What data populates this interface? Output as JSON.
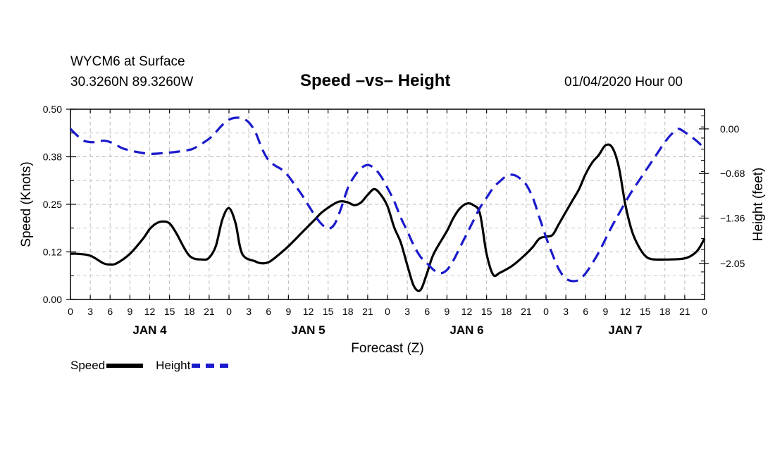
{
  "header": {
    "station": "WYCM6 at Surface",
    "coords": "30.3260N 89.3260W",
    "title": "Speed –vs– Height",
    "datetime": "01/04/2020 Hour 00"
  },
  "chart_data": {
    "type": "line",
    "title": "Speed –vs– Height",
    "xlabel": "Forecast (Z)",
    "ylabel_left": "Speed (Knots)",
    "ylabel_right": "Height (feet)",
    "x_range_hours": [
      0,
      96
    ],
    "y_left_range": [
      0.0,
      0.5
    ],
    "y_right_range": [
      -2.6,
      0.3
    ],
    "grid": true,
    "left_ticks": [
      "0.00",
      "0.12",
      "0.25",
      "0.38",
      "0.50"
    ],
    "left_tick_values": [
      0.0,
      0.125,
      0.25,
      0.375,
      0.5
    ],
    "right_ticks": [
      "0.00",
      "−0.68",
      "−1.36",
      "−2.05"
    ],
    "right_tick_values": [
      0.0,
      -0.68,
      -1.36,
      -2.05
    ],
    "x_tick_labels": [
      "0",
      "3",
      "6",
      "9",
      "12",
      "15",
      "18",
      "21",
      "0",
      "3",
      "6",
      "9",
      "12",
      "15",
      "18",
      "21",
      "0",
      "3",
      "6",
      "9",
      "12",
      "15",
      "18",
      "21",
      "0",
      "3",
      "6",
      "9",
      "12",
      "15",
      "18",
      "21",
      "0"
    ],
    "day_labels": [
      {
        "label": "JAN 4",
        "hour": 12
      },
      {
        "label": "JAN 5",
        "hour": 36
      },
      {
        "label": "JAN 6",
        "hour": 60
      },
      {
        "label": "JAN 7",
        "hour": 84
      }
    ],
    "series": [
      {
        "name": "Speed",
        "axis": "left",
        "color": "#000000",
        "style": "solid",
        "points": [
          [
            0,
            0.12
          ],
          [
            1,
            0.12
          ],
          [
            3,
            0.115
          ],
          [
            5,
            0.095
          ],
          [
            6,
            0.092
          ],
          [
            7,
            0.095
          ],
          [
            9,
            0.12
          ],
          [
            11,
            0.16
          ],
          [
            12,
            0.185
          ],
          [
            13,
            0.2
          ],
          [
            14,
            0.205
          ],
          [
            15,
            0.2
          ],
          [
            16,
            0.175
          ],
          [
            18,
            0.115
          ],
          [
            20,
            0.105
          ],
          [
            21,
            0.11
          ],
          [
            22,
            0.14
          ],
          [
            23,
            0.21
          ],
          [
            24,
            0.24
          ],
          [
            25,
            0.2
          ],
          [
            26,
            0.12
          ],
          [
            28,
            0.1
          ],
          [
            29,
            0.095
          ],
          [
            30,
            0.098
          ],
          [
            31,
            0.11
          ],
          [
            33,
            0.14
          ],
          [
            35,
            0.175
          ],
          [
            37,
            0.21
          ],
          [
            38,
            0.228
          ],
          [
            40,
            0.252
          ],
          [
            41,
            0.258
          ],
          [
            42,
            0.255
          ],
          [
            43,
            0.248
          ],
          [
            44,
            0.255
          ],
          [
            45,
            0.275
          ],
          [
            46,
            0.29
          ],
          [
            47,
            0.275
          ],
          [
            48,
            0.245
          ],
          [
            49,
            0.19
          ],
          [
            50,
            0.15
          ],
          [
            51,
            0.09
          ],
          [
            52,
            0.035
          ],
          [
            53,
            0.025
          ],
          [
            54,
            0.07
          ],
          [
            55,
            0.12
          ],
          [
            57,
            0.18
          ],
          [
            58,
            0.215
          ],
          [
            59,
            0.24
          ],
          [
            60,
            0.252
          ],
          [
            61,
            0.248
          ],
          [
            62,
            0.225
          ],
          [
            63,
            0.12
          ],
          [
            64,
            0.065
          ],
          [
            65,
            0.07
          ],
          [
            67,
            0.09
          ],
          [
            69,
            0.12
          ],
          [
            70,
            0.138
          ],
          [
            71,
            0.16
          ],
          [
            72,
            0.165
          ],
          [
            73,
            0.17
          ],
          [
            74,
            0.2
          ],
          [
            76,
            0.26
          ],
          [
            77,
            0.29
          ],
          [
            78,
            0.33
          ],
          [
            79,
            0.36
          ],
          [
            80,
            0.38
          ],
          [
            81,
            0.405
          ],
          [
            82,
            0.4
          ],
          [
            83,
            0.35
          ],
          [
            84,
            0.25
          ],
          [
            85,
            0.18
          ],
          [
            86,
            0.14
          ],
          [
            87,
            0.115
          ],
          [
            88,
            0.106
          ],
          [
            90,
            0.105
          ],
          [
            92,
            0.106
          ],
          [
            93,
            0.108
          ],
          [
            94,
            0.115
          ],
          [
            95,
            0.13
          ],
          [
            96,
            0.16
          ]
        ]
      },
      {
        "name": "Height",
        "axis": "right",
        "color": "#1a1acc",
        "style": "dashed",
        "points": [
          [
            0,
            0.0
          ],
          [
            1,
            -0.1
          ],
          [
            2,
            -0.18
          ],
          [
            3,
            -0.2
          ],
          [
            4,
            -0.2
          ],
          [
            5,
            -0.18
          ],
          [
            6,
            -0.2
          ],
          [
            7,
            -0.25
          ],
          [
            8,
            -0.3
          ],
          [
            10,
            -0.35
          ],
          [
            12,
            -0.38
          ],
          [
            14,
            -0.37
          ],
          [
            16,
            -0.35
          ],
          [
            18,
            -0.32
          ],
          [
            19,
            -0.28
          ],
          [
            21,
            -0.15
          ],
          [
            22,
            -0.05
          ],
          [
            23,
            0.06
          ],
          [
            24,
            0.14
          ],
          [
            25,
            0.17
          ],
          [
            26,
            0.16
          ],
          [
            27,
            0.1
          ],
          [
            28,
            -0.05
          ],
          [
            29,
            -0.3
          ],
          [
            30,
            -0.48
          ],
          [
            31,
            -0.56
          ],
          [
            32,
            -0.62
          ],
          [
            33,
            -0.72
          ],
          [
            34,
            -0.86
          ],
          [
            35,
            -1.0
          ],
          [
            36,
            -1.16
          ],
          [
            37,
            -1.32
          ],
          [
            38,
            -1.45
          ],
          [
            39,
            -1.52
          ],
          [
            40,
            -1.45
          ],
          [
            41,
            -1.2
          ],
          [
            42,
            -0.9
          ],
          [
            43,
            -0.72
          ],
          [
            44,
            -0.6
          ],
          [
            45,
            -0.55
          ],
          [
            46,
            -0.6
          ],
          [
            47,
            -0.72
          ],
          [
            48,
            -0.9
          ],
          [
            49,
            -1.1
          ],
          [
            50,
            -1.35
          ],
          [
            51,
            -1.56
          ],
          [
            52,
            -1.78
          ],
          [
            53,
            -1.95
          ],
          [
            54,
            -2.05
          ],
          [
            55,
            -2.15
          ],
          [
            56,
            -2.2
          ],
          [
            57,
            -2.15
          ],
          [
            58,
            -2.0
          ],
          [
            59,
            -1.8
          ],
          [
            60,
            -1.6
          ],
          [
            61,
            -1.4
          ],
          [
            62,
            -1.2
          ],
          [
            63,
            -1.05
          ],
          [
            64,
            -0.9
          ],
          [
            65,
            -0.8
          ],
          [
            66,
            -0.72
          ],
          [
            67,
            -0.7
          ],
          [
            68,
            -0.75
          ],
          [
            69,
            -0.85
          ],
          [
            70,
            -1.05
          ],
          [
            71,
            -1.35
          ],
          [
            72,
            -1.65
          ],
          [
            73,
            -1.92
          ],
          [
            74,
            -2.15
          ],
          [
            75,
            -2.28
          ],
          [
            76,
            -2.32
          ],
          [
            77,
            -2.3
          ],
          [
            78,
            -2.2
          ],
          [
            79,
            -2.05
          ],
          [
            80,
            -1.88
          ],
          [
            81,
            -1.68
          ],
          [
            82,
            -1.48
          ],
          [
            83,
            -1.3
          ],
          [
            84,
            -1.12
          ],
          [
            85,
            -0.95
          ],
          [
            86,
            -0.8
          ],
          [
            87,
            -0.65
          ],
          [
            88,
            -0.5
          ],
          [
            89,
            -0.35
          ],
          [
            90,
            -0.2
          ],
          [
            91,
            -0.08
          ],
          [
            92,
            0.0
          ],
          [
            93,
            -0.05
          ],
          [
            94,
            -0.12
          ],
          [
            95,
            -0.2
          ],
          [
            96,
            -0.3
          ]
        ]
      }
    ],
    "legend": [
      {
        "label": "Speed",
        "color": "#000000",
        "style": "solid"
      },
      {
        "label": "Height",
        "color": "#1a1acc",
        "style": "dashed"
      }
    ],
    "legend_position": "bottom-left"
  }
}
